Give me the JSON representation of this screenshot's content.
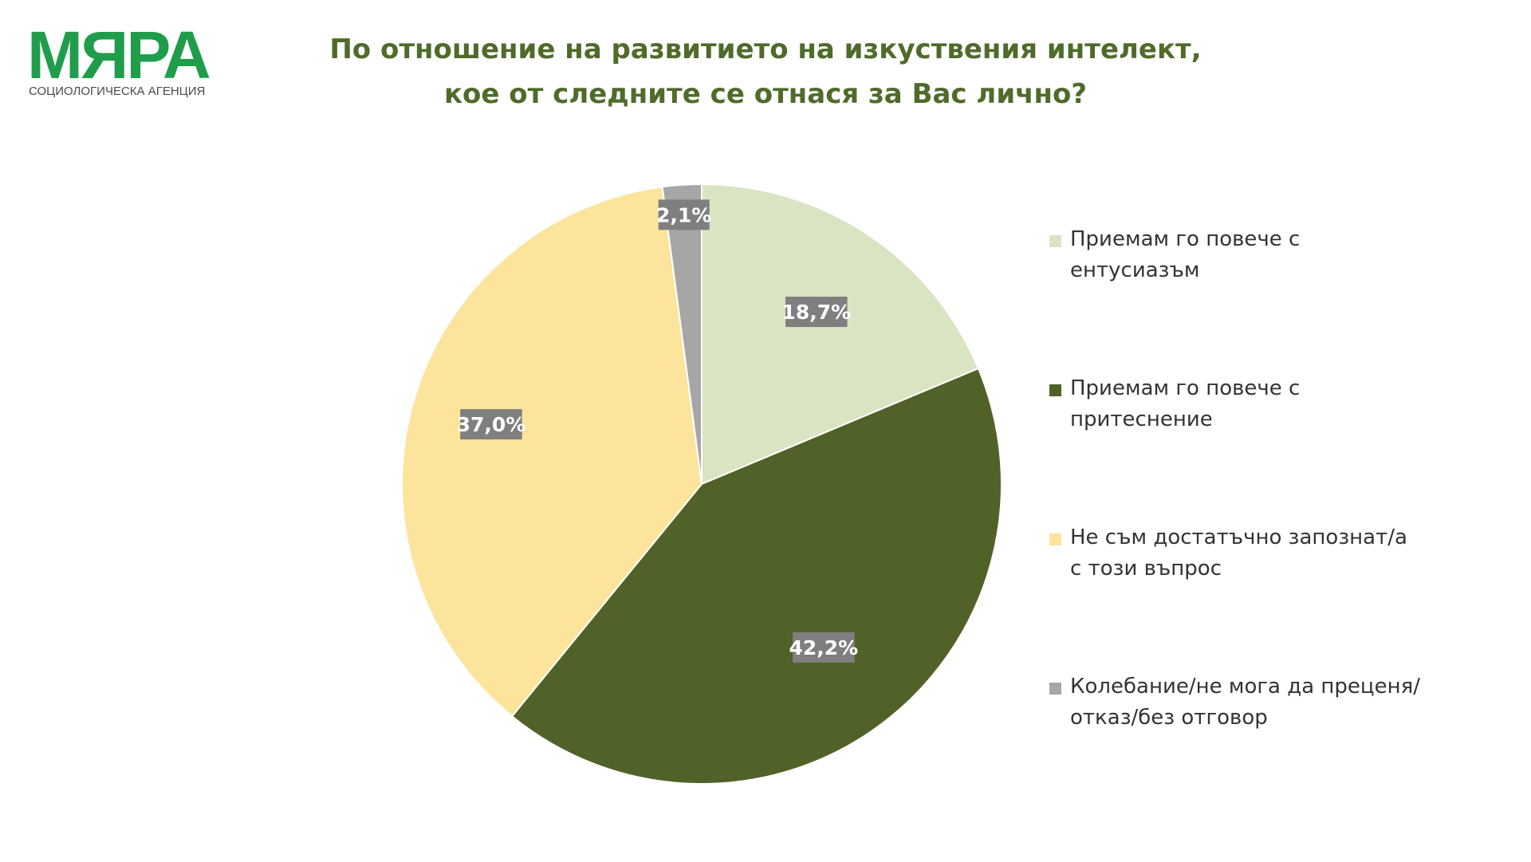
{
  "logo": {
    "mark": "МЯРА",
    "subtitle": "СОЦИОЛОГИЧЕСКА АГЕНЦИЯ"
  },
  "title": {
    "line1": "По отношение на развитието на изкуствения интелект,",
    "line2": "кое от следните се отнася за Вас лично?"
  },
  "chart_data": {
    "type": "pie",
    "title": "По отношение на развитието на изкуствения интелект, кое от следните се отнася за Вас лично?",
    "start": "12 o'clock, clockwise",
    "legend_position": "right",
    "slices": [
      {
        "label": "Приемам го повече с ентусиазъм",
        "value": 18.7,
        "display": "18,7%",
        "color": "#d9e4c3"
      },
      {
        "label": "Приемам го повече с притеснение",
        "value": 42.2,
        "display": "42,2%",
        "color": "#506228"
      },
      {
        "label": "Не съм достатъчно запознат/а с този въпрос",
        "value": 37.0,
        "display": "37,0%",
        "color": "#fde49c"
      },
      {
        "label": "Колебание/не мога да преценя/отказ/без отговор",
        "value": 2.1,
        "display": "2,1%",
        "color": "#a6a6a6"
      }
    ],
    "label_box_color": "#7f7f7f",
    "label_text_color": "#ffffff"
  }
}
